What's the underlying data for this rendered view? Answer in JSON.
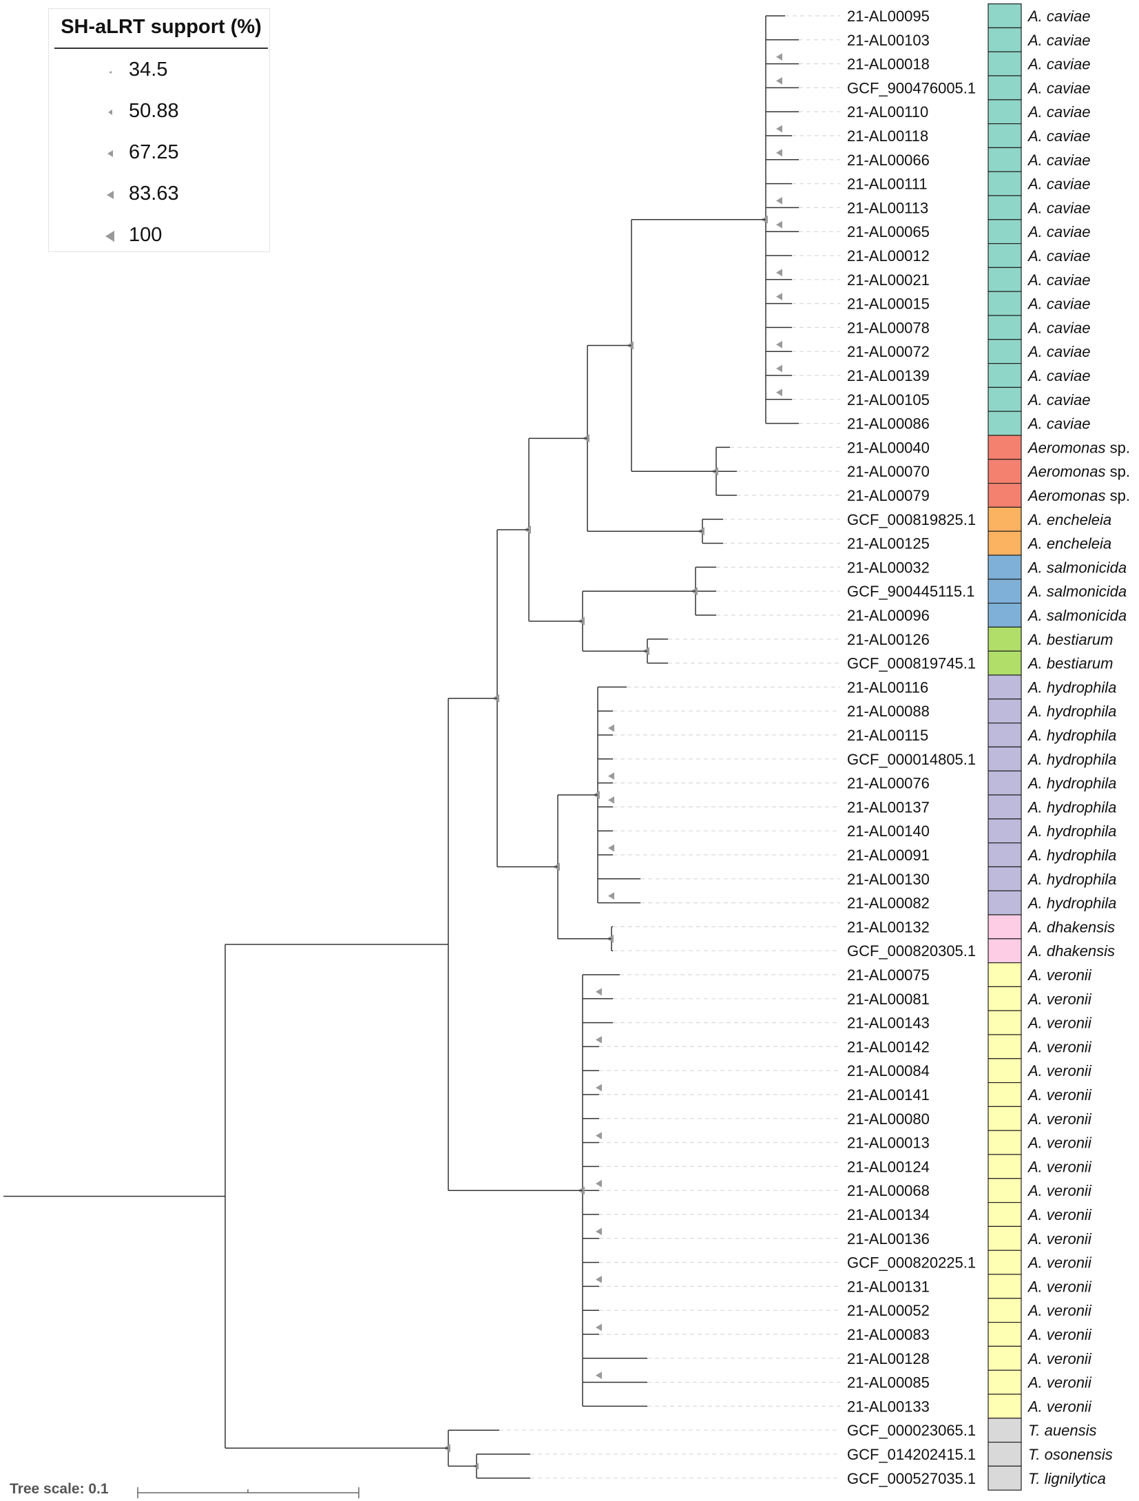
{
  "legend": {
    "title": "SH-aLRT support (%)",
    "values": [
      "34.5",
      "50.88",
      "67.25",
      "83.63",
      "100"
    ]
  },
  "scale": {
    "label": "Tree scale: 0.1"
  },
  "colors": {
    "A. caviae": "#8fd6c8",
    "Aeromonas sp.": "#f4806f",
    "A. encheleia": "#fbb261",
    "A. salmonicida": "#7fb1d8",
    "A. bestiarum": "#b0de69",
    "A. hydrophila": "#bebadb",
    "A. dhakensis": "#fccde5",
    "A. veronii": "#ffffb3",
    "T. auensis": "#d9d9d9",
    "T. osonensis": "#d9d9d9",
    "T. lignilytica": "#d9d9d9"
  },
  "leaves": [
    {
      "id": "21-AL00095",
      "species": "A. caviae"
    },
    {
      "id": "21-AL00103",
      "species": "A. caviae"
    },
    {
      "id": "21-AL00018",
      "species": "A. caviae"
    },
    {
      "id": "GCF_900476005.1",
      "species": "A. caviae"
    },
    {
      "id": "21-AL00110",
      "species": "A. caviae"
    },
    {
      "id": "21-AL00118",
      "species": "A. caviae"
    },
    {
      "id": "21-AL00066",
      "species": "A. caviae"
    },
    {
      "id": "21-AL00111",
      "species": "A. caviae"
    },
    {
      "id": "21-AL00113",
      "species": "A. caviae"
    },
    {
      "id": "21-AL00065",
      "species": "A. caviae"
    },
    {
      "id": "21-AL00012",
      "species": "A. caviae"
    },
    {
      "id": "21-AL00021",
      "species": "A. caviae"
    },
    {
      "id": "21-AL00015",
      "species": "A. caviae"
    },
    {
      "id": "21-AL00078",
      "species": "A. caviae"
    },
    {
      "id": "21-AL00072",
      "species": "A. caviae"
    },
    {
      "id": "21-AL00139",
      "species": "A. caviae"
    },
    {
      "id": "21-AL00105",
      "species": "A. caviae"
    },
    {
      "id": "21-AL00086",
      "species": "A. caviae"
    },
    {
      "id": "21-AL00040",
      "species": "Aeromonas sp."
    },
    {
      "id": "21-AL00070",
      "species": "Aeromonas sp."
    },
    {
      "id": "21-AL00079",
      "species": "Aeromonas sp."
    },
    {
      "id": "GCF_000819825.1",
      "species": "A. encheleia"
    },
    {
      "id": "21-AL00125",
      "species": "A. encheleia"
    },
    {
      "id": "21-AL00032",
      "species": "A. salmonicida"
    },
    {
      "id": "GCF_900445115.1",
      "species": "A. salmonicida"
    },
    {
      "id": "21-AL00096",
      "species": "A. salmonicida"
    },
    {
      "id": "21-AL00126",
      "species": "A. bestiarum"
    },
    {
      "id": "GCF_000819745.1",
      "species": "A. bestiarum"
    },
    {
      "id": "21-AL00116",
      "species": "A. hydrophila"
    },
    {
      "id": "21-AL00088",
      "species": "A. hydrophila"
    },
    {
      "id": "21-AL00115",
      "species": "A. hydrophila"
    },
    {
      "id": "GCF_000014805.1",
      "species": "A. hydrophila"
    },
    {
      "id": "21-AL00076",
      "species": "A. hydrophila"
    },
    {
      "id": "21-AL00137",
      "species": "A. hydrophila"
    },
    {
      "id": "21-AL00140",
      "species": "A. hydrophila"
    },
    {
      "id": "21-AL00091",
      "species": "A. hydrophila"
    },
    {
      "id": "21-AL00130",
      "species": "A. hydrophila"
    },
    {
      "id": "21-AL00082",
      "species": "A. hydrophila"
    },
    {
      "id": "21-AL00132",
      "species": "A. dhakensis"
    },
    {
      "id": "GCF_000820305.1",
      "species": "A. dhakensis"
    },
    {
      "id": "21-AL00075",
      "species": "A. veronii"
    },
    {
      "id": "21-AL00081",
      "species": "A. veronii"
    },
    {
      "id": "21-AL00143",
      "species": "A. veronii"
    },
    {
      "id": "21-AL00142",
      "species": "A. veronii"
    },
    {
      "id": "21-AL00084",
      "species": "A. veronii"
    },
    {
      "id": "21-AL00141",
      "species": "A. veronii"
    },
    {
      "id": "21-AL00080",
      "species": "A. veronii"
    },
    {
      "id": "21-AL00013",
      "species": "A. veronii"
    },
    {
      "id": "21-AL00124",
      "species": "A. veronii"
    },
    {
      "id": "21-AL00068",
      "species": "A. veronii"
    },
    {
      "id": "21-AL00134",
      "species": "A. veronii"
    },
    {
      "id": "21-AL00136",
      "species": "A. veronii"
    },
    {
      "id": "GCF_000820225.1",
      "species": "A. veronii"
    },
    {
      "id": "21-AL00131",
      "species": "A. veronii"
    },
    {
      "id": "21-AL00052",
      "species": "A. veronii"
    },
    {
      "id": "21-AL00083",
      "species": "A. veronii"
    },
    {
      "id": "21-AL00128",
      "species": "A. veronii"
    },
    {
      "id": "21-AL00085",
      "species": "A. veronii"
    },
    {
      "id": "21-AL00133",
      "species": "A. veronii"
    },
    {
      "id": "GCF_000023065.1",
      "species": "T. auensis"
    },
    {
      "id": "GCF_014202415.1",
      "species": "T. osonensis"
    },
    {
      "id": "GCF_000527035.1",
      "species": "T. lignilytica"
    }
  ]
}
